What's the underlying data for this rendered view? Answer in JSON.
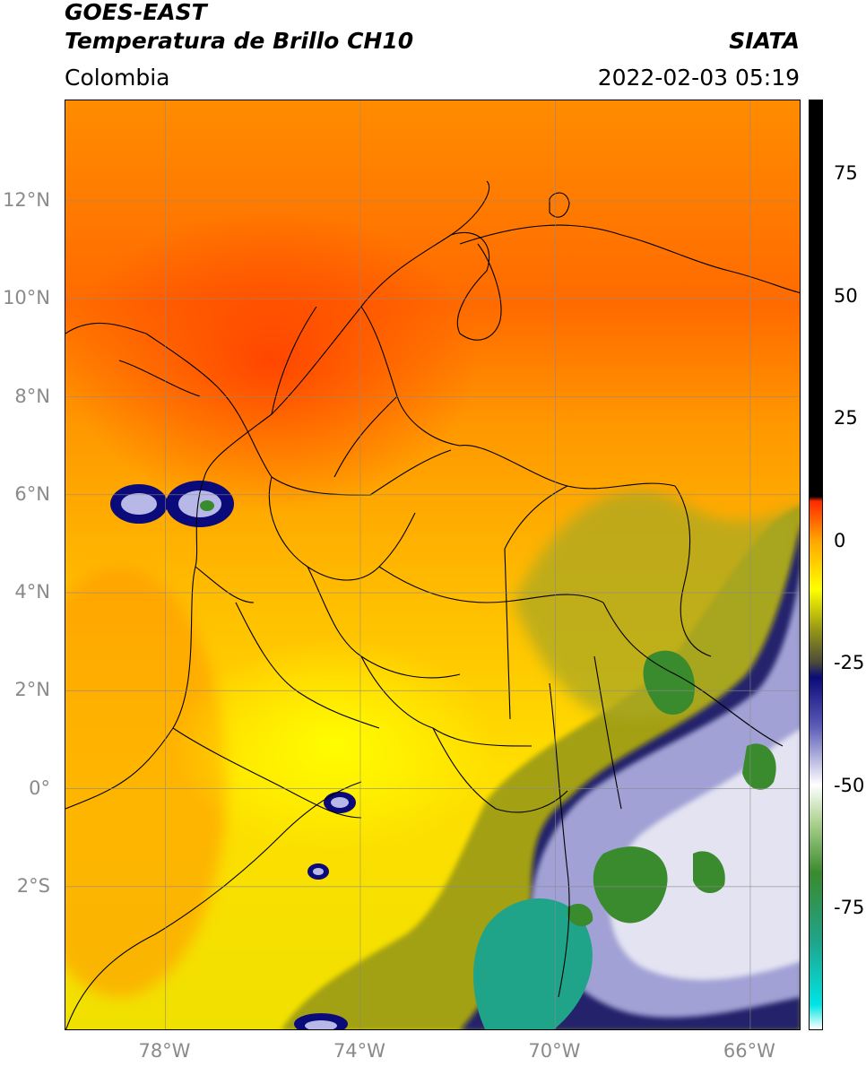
{
  "header": {
    "line1": "GOES-EAST",
    "line2": "Temperatura de Brillo CH10",
    "organization": "SIATA",
    "region": "Colombia",
    "datetime": "2022-02-03 05:19"
  },
  "map": {
    "lat_labels": [
      {
        "label": "12°N",
        "value": 12
      },
      {
        "label": "10°N",
        "value": 10
      },
      {
        "label": "8°N",
        "value": 8
      },
      {
        "label": "6°N",
        "value": 6
      },
      {
        "label": "4°N",
        "value": 4
      },
      {
        "label": "2°N",
        "value": 2
      },
      {
        "label": "0°",
        "value": 0
      },
      {
        "label": "2°S",
        "value": -2
      }
    ],
    "lon_labels": [
      {
        "label": "78°W",
        "value": -78
      },
      {
        "label": "74°W",
        "value": -74
      },
      {
        "label": "70°W",
        "value": -70
      },
      {
        "label": "66°W",
        "value": -66
      }
    ],
    "lat_range": [
      -4.95,
      14.05
    ],
    "lon_range": [
      -80.05,
      -64.95
    ],
    "grid": true
  },
  "colorbar": {
    "range": [
      -100,
      90
    ],
    "ticks": [
      {
        "label": "75",
        "value": 75
      },
      {
        "label": "50",
        "value": 50
      },
      {
        "label": "25",
        "value": 25
      },
      {
        "label": "0",
        "value": 0
      },
      {
        "label": "-25",
        "value": -25
      },
      {
        "label": "-50",
        "value": -50
      },
      {
        "label": "-75",
        "value": -75
      }
    ],
    "stops": [
      {
        "value": -100,
        "color": "#ffffff"
      },
      {
        "value": -95,
        "color": "#00e5e5"
      },
      {
        "value": -82,
        "color": "#1fa48a"
      },
      {
        "value": -68,
        "color": "#3a8a2e"
      },
      {
        "value": -58,
        "color": "#a8d08c"
      },
      {
        "value": -50,
        "color": "#ffffff"
      },
      {
        "value": -38,
        "color": "#5b5bb8"
      },
      {
        "value": -28,
        "color": "#0a0a7a"
      },
      {
        "value": -25,
        "color": "#4a4a3a"
      },
      {
        "value": -18,
        "color": "#9a9a14"
      },
      {
        "value": -10,
        "color": "#ffff00"
      },
      {
        "value": 0,
        "color": "#ffa500"
      },
      {
        "value": 8,
        "color": "#ff2a00"
      },
      {
        "value": 9,
        "color": "#000000"
      },
      {
        "value": 90,
        "color": "#000000"
      }
    ]
  }
}
